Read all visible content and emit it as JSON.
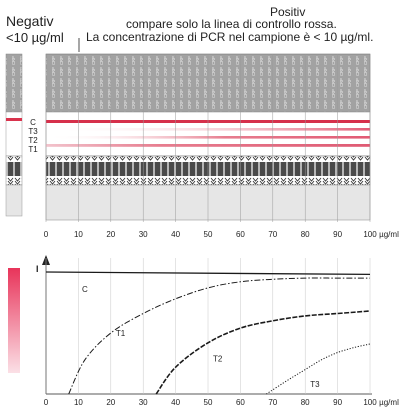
{
  "header": {
    "negative_label": "Negativ",
    "negative_threshold": "<10 µg/ml",
    "positive_label": "Positiv",
    "positive_line1": "compare solo la linea di controllo rossa.",
    "positive_line2": "La concentrazione di PCR nel campione è < 10 µg/ml."
  },
  "strip": {
    "pad_text": "CRP",
    "max_text": "MAX",
    "line_labels": [
      "C",
      "T3",
      "T2",
      "T1"
    ]
  },
  "axis": {
    "ticks": [
      "0",
      "10",
      "20",
      "30",
      "40",
      "50",
      "60",
      "70",
      "80",
      "90",
      "100"
    ],
    "unit": "µg/ml"
  },
  "chart_data": {
    "type": "line",
    "xlabel": "µg/ml",
    "ylabel": "I",
    "xlim": [
      0,
      100
    ],
    "series": [
      {
        "name": "C",
        "x": [
          0,
          100
        ],
        "y": [
          1.0,
          0.98
        ]
      },
      {
        "name": "T1",
        "x": [
          7,
          12,
          20,
          30,
          40,
          50,
          60,
          70,
          80,
          90,
          100
        ],
        "y": [
          0.0,
          0.28,
          0.5,
          0.66,
          0.78,
          0.87,
          0.92,
          0.94,
          0.95,
          0.95,
          0.95
        ]
      },
      {
        "name": "T2",
        "x": [
          34,
          40,
          50,
          60,
          70,
          80,
          90,
          100
        ],
        "y": [
          0.0,
          0.22,
          0.42,
          0.54,
          0.6,
          0.64,
          0.66,
          0.68
        ]
      },
      {
        "name": "T3",
        "x": [
          68,
          75,
          80,
          85,
          90,
          95,
          100
        ],
        "y": [
          0.0,
          0.12,
          0.2,
          0.28,
          0.34,
          0.38,
          0.41
        ]
      }
    ]
  }
}
